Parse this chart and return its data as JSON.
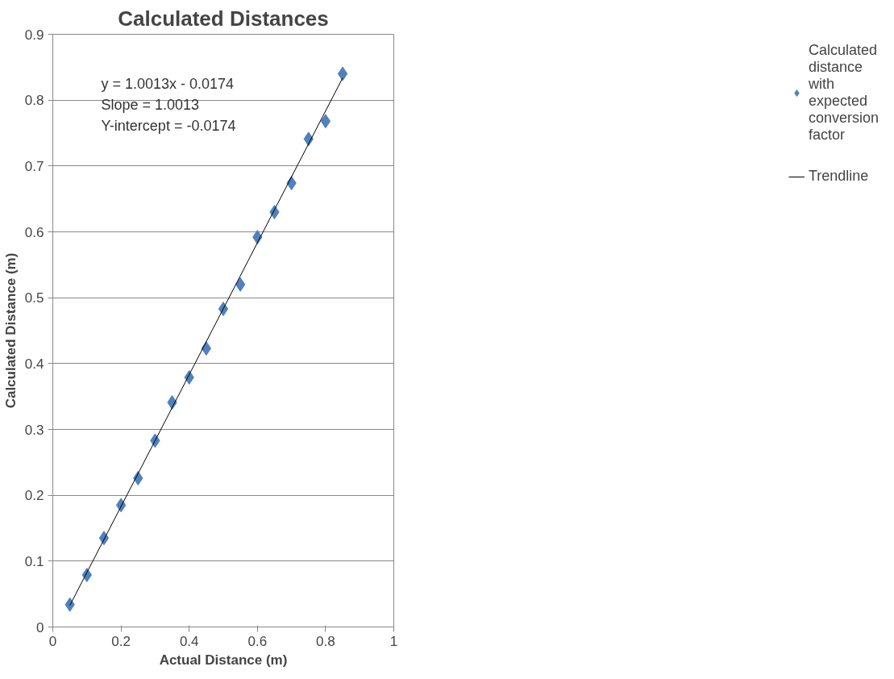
{
  "chart_data": {
    "type": "scatter",
    "title": "Calculated Distances",
    "xlabel": "Actual Distance (m)",
    "ylabel": "Calculated Distance (m)",
    "x": [
      0.05,
      0.1,
      0.15,
      0.2,
      0.25,
      0.3,
      0.35,
      0.4,
      0.45,
      0.5,
      0.55,
      0.6,
      0.65,
      0.7,
      0.75,
      0.8,
      0.85
    ],
    "series": [
      {
        "name": "Calculated distance with expected conversion factor",
        "color": "#4f81bd",
        "marker": "diamond",
        "values": [
          0.034,
          0.079,
          0.135,
          0.185,
          0.226,
          0.283,
          0.341,
          0.379,
          0.423,
          0.483,
          0.52,
          0.592,
          0.63,
          0.674,
          0.741,
          0.768,
          0.84
        ]
      },
      {
        "name": "Trendline",
        "type": "line",
        "color": "#000000",
        "x": [
          0.05,
          0.85
        ],
        "values": [
          0.0327,
          0.8337
        ]
      }
    ],
    "annotations": [
      "y = 1.0013x - 0.0174",
      "Slope = 1.0013",
      "Y-intercept = -0.0174"
    ],
    "xlim": [
      0,
      1
    ],
    "xticks": [
      0,
      0.2,
      0.4,
      0.6,
      0.8,
      1
    ],
    "ylim": [
      0,
      0.9
    ],
    "yticks": [
      0,
      0.1,
      0.2,
      0.3,
      0.4,
      0.5,
      0.6,
      0.7,
      0.8,
      0.9
    ],
    "grid": "y",
    "legend": "right"
  }
}
